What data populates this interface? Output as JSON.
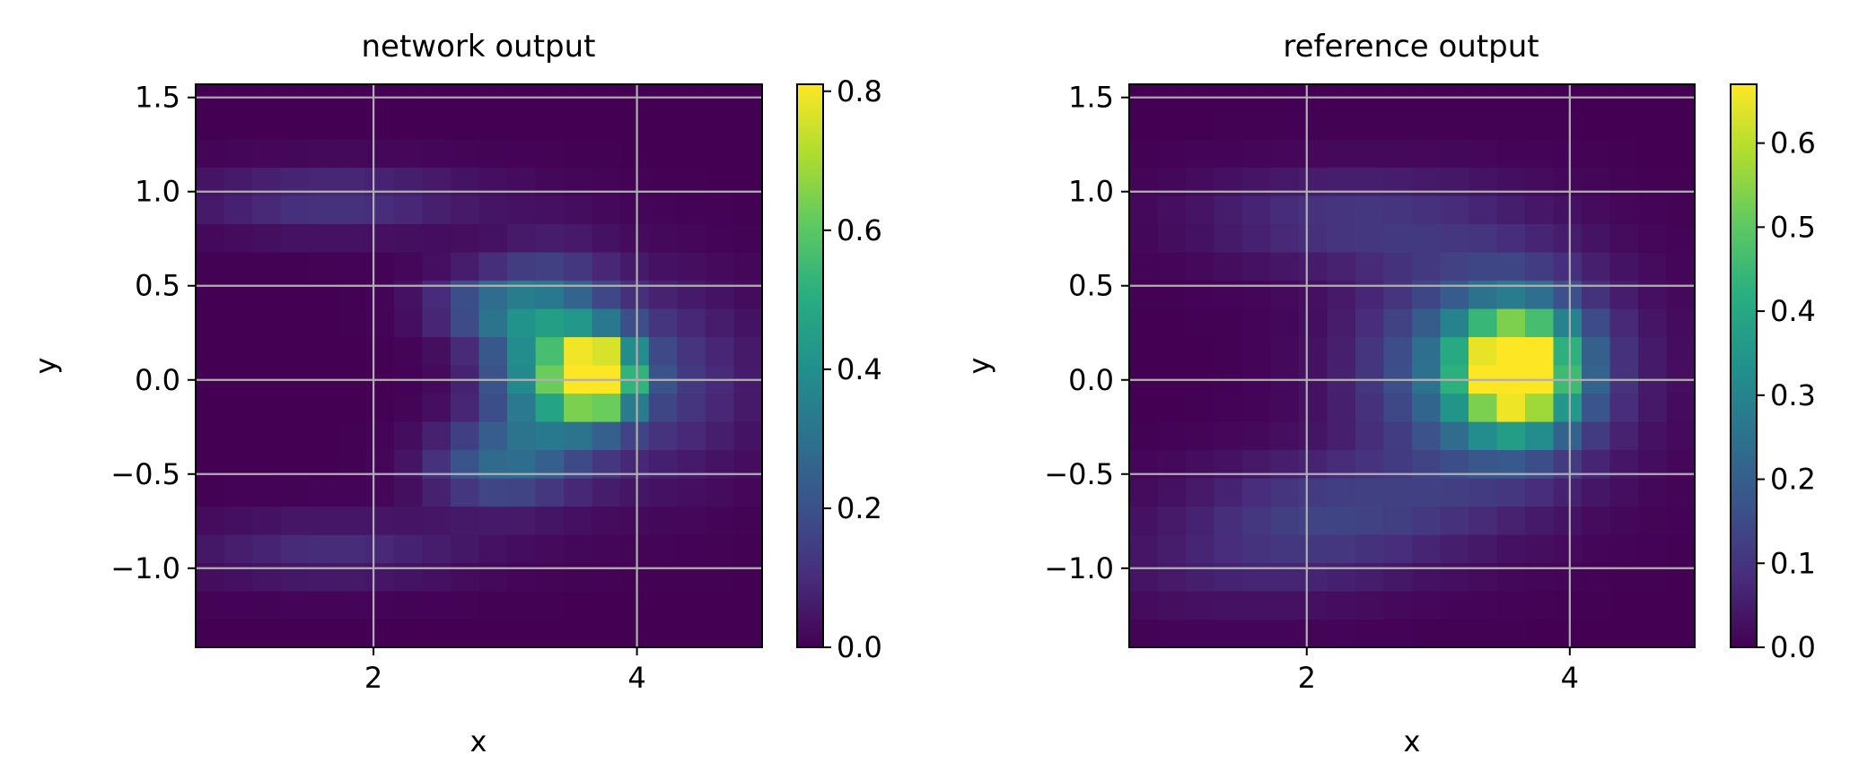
{
  "chart_data": [
    {
      "type": "heatmap",
      "title": "network output",
      "xlabel": "x",
      "ylabel": "y",
      "xlim": [
        0.65,
        4.95
      ],
      "ylim": [
        -1.42,
        1.57
      ],
      "xticks": [
        2,
        4
      ],
      "xtick_labels": [
        "2",
        "4"
      ],
      "yticks": [
        1.5,
        1.0,
        0.5,
        0.0,
        -0.5,
        -1.0
      ],
      "ytick_labels": [
        "1.5",
        "1.0",
        "0.5",
        "0.0",
        "−0.5",
        "−1.0"
      ],
      "grid": true,
      "colormap": "viridis",
      "colorbar": {
        "vmin": 0.0,
        "vmax": 0.81,
        "ticks": [
          0.0,
          0.2,
          0.4,
          0.6,
          0.8
        ],
        "tick_labels": [
          "0.0",
          "0.2",
          "0.4",
          "0.6",
          "0.8"
        ]
      },
      "bins": {
        "x_start": 0.65,
        "x_step": 0.215,
        "nx": 20,
        "y_start": -1.42,
        "y_step": 0.15,
        "ny": 20
      },
      "blobs": [
        {
          "x": 3.7,
          "y": 0.02,
          "sx": 0.2,
          "sy": 0.13,
          "a": 0.81
        },
        {
          "x": 3.35,
          "y": 0.08,
          "sx": 0.35,
          "sy": 0.33,
          "a": 0.42
        },
        {
          "x": 4.1,
          "y": 0.0,
          "sx": 0.55,
          "sy": 0.35,
          "a": 0.15
        },
        {
          "x": 1.7,
          "y": 0.95,
          "sx": 0.8,
          "sy": 0.13,
          "a": 0.12
        },
        {
          "x": 1.7,
          "y": -0.9,
          "sx": 0.8,
          "sy": 0.13,
          "a": 0.1
        },
        {
          "x": 2.9,
          "y": 0.4,
          "sx": 0.35,
          "sy": 0.12,
          "a": 0.2
        },
        {
          "x": 2.9,
          "y": -0.45,
          "sx": 0.35,
          "sy": 0.15,
          "a": 0.22
        }
      ]
    },
    {
      "type": "heatmap",
      "title": "reference output",
      "xlabel": "x",
      "ylabel": "y",
      "xlim": [
        0.65,
        4.95
      ],
      "ylim": [
        -1.42,
        1.57
      ],
      "xticks": [
        2,
        4
      ],
      "xtick_labels": [
        "2",
        "4"
      ],
      "yticks": [
        1.5,
        1.0,
        0.5,
        0.0,
        -0.5,
        -1.0
      ],
      "ytick_labels": [
        "1.5",
        "1.0",
        "0.5",
        "0.0",
        "−0.5",
        "−1.0"
      ],
      "grid": true,
      "colormap": "viridis",
      "colorbar": {
        "vmin": 0.0,
        "vmax": 0.67,
        "ticks": [
          0.0,
          0.1,
          0.2,
          0.3,
          0.4,
          0.5,
          0.6
        ],
        "tick_labels": [
          "0.0",
          "0.1",
          "0.2",
          "0.3",
          "0.4",
          "0.5",
          "0.6"
        ]
      },
      "bins": {
        "x_start": 0.65,
        "x_step": 0.215,
        "nx": 20,
        "y_start": -1.42,
        "y_step": 0.15,
        "ny": 20
      },
      "blobs": [
        {
          "x": 3.6,
          "y": 0.05,
          "sx": 0.3,
          "sy": 0.22,
          "a": 0.62
        },
        {
          "x": 3.4,
          "y": 0.05,
          "sx": 0.65,
          "sy": 0.4,
          "a": 0.28
        },
        {
          "x": 2.3,
          "y": 0.85,
          "sx": 0.8,
          "sy": 0.18,
          "a": 0.1
        },
        {
          "x": 2.2,
          "y": -0.7,
          "sx": 0.75,
          "sy": 0.2,
          "a": 0.12
        },
        {
          "x": 1.5,
          "y": -1.0,
          "sx": 0.8,
          "sy": 0.18,
          "a": 0.05
        }
      ]
    }
  ]
}
